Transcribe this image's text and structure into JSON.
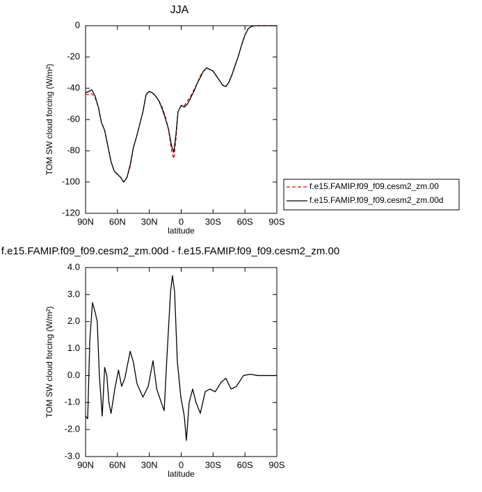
{
  "chart_data": [
    {
      "type": "line",
      "title": "JJA",
      "ylabel": "TOM SW cloud forcing (W/m²)",
      "xlabel": "latitude",
      "xlim": [
        90,
        -90
      ],
      "ylim": [
        -120,
        0
      ],
      "xticks": [
        {
          "value": 90,
          "label": "90N"
        },
        {
          "value": 60,
          "label": "60N"
        },
        {
          "value": 30,
          "label": "30N"
        },
        0,
        {
          "value": -30,
          "label": "30S"
        },
        {
          "value": -60,
          "label": "60S"
        },
        {
          "value": -90,
          "label": "90S"
        }
      ],
      "yticks": [
        0,
        -20,
        -40,
        -60,
        -80,
        -100,
        -120
      ],
      "legend": "right",
      "x": [
        90,
        87,
        84,
        81,
        78,
        75,
        72,
        69,
        66,
        63,
        60,
        57,
        54,
        51,
        48,
        45,
        42,
        39,
        36,
        33,
        30,
        27,
        24,
        21,
        18,
        15,
        12,
        9,
        7,
        5,
        3,
        0,
        -3,
        -6,
        -9,
        -12,
        -15,
        -18,
        -21,
        -24,
        -27,
        -30,
        -33,
        -36,
        -39,
        -42,
        -45,
        -48,
        -51,
        -54,
        -57,
        -60,
        -63,
        -66,
        -69,
        -72,
        -75,
        -80,
        -85,
        -90
      ],
      "series": [
        {
          "name": "f.e15.FAMIP.f09_f09.cesm2_zm.00",
          "color": "#e00000",
          "dashed": true,
          "values": [
            -44,
            -44,
            -43.5,
            -46,
            -52,
            -62,
            -67,
            -77,
            -87,
            -93,
            -95,
            -97,
            -100,
            -97,
            -90,
            -78,
            -71,
            -63,
            -55,
            -44,
            -42,
            -43,
            -45,
            -48,
            -52,
            -58,
            -66,
            -80,
            -85,
            -73,
            -55,
            -51,
            -51,
            -48,
            -45,
            -41,
            -37,
            -32,
            -29,
            -27,
            -28,
            -29,
            -32,
            -35,
            -38,
            -39,
            -36,
            -31,
            -25,
            -19,
            -12,
            -6,
            -2,
            -0.5,
            0,
            0,
            0,
            0,
            0,
            0
          ]
        },
        {
          "name": "f.e15.FAMIP.f09_f09.cesm2_zm.00d",
          "color": "#000000",
          "dashed": false,
          "values": [
            -43,
            -42,
            -41,
            -45,
            -52,
            -62,
            -67,
            -77,
            -87,
            -93,
            -95,
            -97,
            -100,
            -97,
            -89,
            -78,
            -71,
            -63,
            -55,
            -44,
            -42,
            -43,
            -45,
            -48,
            -53,
            -59,
            -66,
            -77,
            -81,
            -70,
            -55,
            -51,
            -52,
            -50,
            -46,
            -42,
            -37,
            -33,
            -29,
            -27,
            -28,
            -29,
            -32,
            -35,
            -38,
            -39,
            -36,
            -31,
            -25,
            -19,
            -12,
            -6,
            -2,
            -0.5,
            0,
            0,
            0,
            0,
            0,
            0
          ]
        }
      ]
    },
    {
      "type": "line",
      "title": "f.e15.FAMIP.f09_f09.cesm2_zm.00d - f.e15.FAMIP.f09_f09.cesm2_zm.00",
      "ylabel": "TOM SW cloud forcing (W/m²)",
      "xlabel": "latitude",
      "xlim": [
        90,
        -90
      ],
      "ylim": [
        -3,
        4
      ],
      "xticks": [
        {
          "value": 90,
          "label": "90N"
        },
        {
          "value": 60,
          "label": "60N"
        },
        {
          "value": 30,
          "label": "30N"
        },
        0,
        {
          "value": -30,
          "label": "30S"
        },
        {
          "value": -60,
          "label": "60S"
        },
        {
          "value": -90,
          "label": "90S"
        }
      ],
      "yticks": [
        {
          "value": 4,
          "label": "4.0"
        },
        {
          "value": 3,
          "label": "3.0"
        },
        {
          "value": 2,
          "label": "2.0"
        },
        {
          "value": 1,
          "label": "1.0"
        },
        {
          "value": 0,
          "label": "0.0"
        },
        {
          "value": -1,
          "label": "-1.0"
        },
        {
          "value": -2,
          "label": "-2.0"
        },
        {
          "value": -3,
          "label": "-3.0"
        }
      ],
      "x": [
        90,
        88,
        86,
        83.5,
        81,
        79,
        77,
        74.3,
        72,
        70,
        68,
        66,
        62.5,
        59,
        56,
        53,
        48,
        45,
        41.6,
        36,
        31,
        26.5,
        23,
        18.7,
        16,
        13.4,
        10,
        8.2,
        6.2,
        3.6,
        0.3,
        -2.9,
        -4.9,
        -7.5,
        -10.8,
        -14,
        -18,
        -22.6,
        -27,
        -32,
        -37.6,
        -42,
        -47,
        -52,
        -58.6,
        -65,
        -72,
        -90
      ],
      "series": [
        {
          "color": "#000000",
          "dashed": false,
          "values": [
            -1.5,
            -1.6,
            1.3,
            2.7,
            2.35,
            2.0,
            0,
            -1.5,
            0.3,
            0,
            -1,
            -1.4,
            -0.5,
            0.2,
            -0.4,
            -0.1,
            0.9,
            0.5,
            -0.3,
            -0.8,
            -0.4,
            0.55,
            -0.5,
            -1,
            -1.3,
            0.7,
            3.1,
            3.7,
            3.1,
            0.5,
            -0.8,
            -1.5,
            -2.4,
            -1,
            -0.5,
            -1,
            -1.4,
            -0.6,
            -0.5,
            -0.6,
            -0.25,
            -0.1,
            -0.5,
            -0.4,
            0,
            0.05,
            0,
            0
          ]
        }
      ]
    }
  ]
}
